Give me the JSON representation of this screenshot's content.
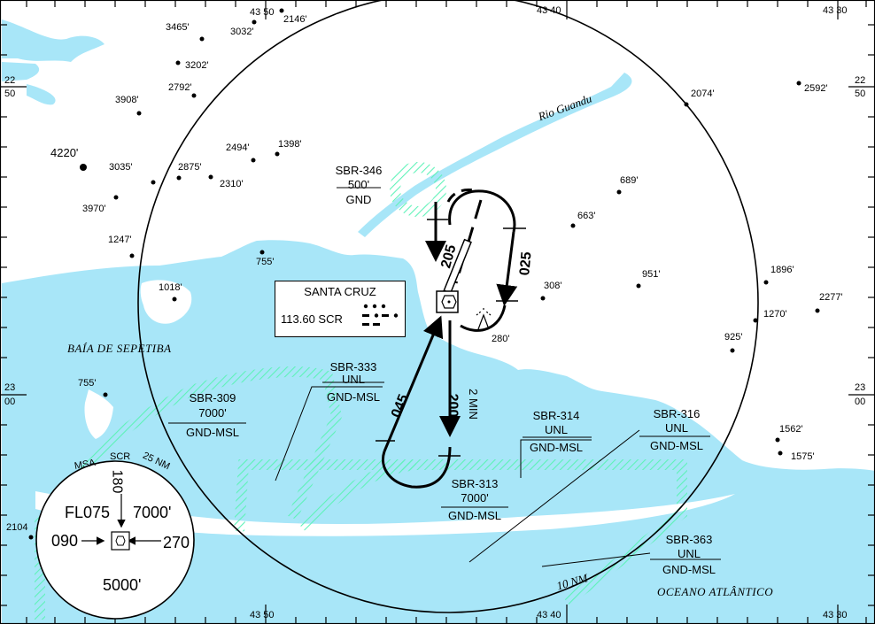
{
  "colors": {
    "water": "#a8e6f8",
    "restricted_hatch": "#5ef2b8",
    "line": "#000000",
    "paper": "#ffffff"
  },
  "grid": {
    "lon_top": [
      "43 50",
      "43 40",
      "43 30"
    ],
    "lon_bottom": [
      "43 50",
      "43 40",
      "43 30"
    ],
    "lat_left": [
      {
        "deg": "22",
        "min": "50"
      },
      {
        "deg": "23",
        "min": "00"
      }
    ],
    "lat_right": [
      {
        "deg": "22",
        "min": "50"
      },
      {
        "deg": "23",
        "min": "00"
      }
    ]
  },
  "navaid": {
    "name": "SANTA CRUZ",
    "freq_ident": "113.60 SCR",
    "icon": "vor-dme-icon",
    "morse_icon": "morse-code-icon"
  },
  "holding": {
    "inbound_course": "025",
    "outbound_course": "205",
    "lower_inbound": "045",
    "lower_outbound": "200",
    "leg_time": "2 MIN"
  },
  "airspaces": [
    {
      "id": "SBR-346",
      "upper": "500'",
      "lower": "GND"
    },
    {
      "id": "SBR-333",
      "upper": "UNL",
      "lower": "GND-MSL"
    },
    {
      "id": "SBR-309",
      "upper": "7000'",
      "lower": "GND-MSL"
    },
    {
      "id": "SBR-314",
      "upper": "UNL",
      "lower": "GND-MSL"
    },
    {
      "id": "SBR-316",
      "upper": "UNL",
      "lower": "GND-MSL"
    },
    {
      "id": "SBR-313",
      "upper": "7000'",
      "lower": "GND-MSL"
    },
    {
      "id": "SBR-363",
      "upper": "UNL",
      "lower": "GND-MSL"
    }
  ],
  "place_names": {
    "river": "Rio Guandu",
    "bay": "BAÍA DE SEPETIBA",
    "ocean": "OCEANO ATLÂNTICO",
    "range_ring": "10 NM"
  },
  "elevations": [
    "3465'",
    "3032'",
    "2146'",
    "3202'",
    "2792'",
    "3908'",
    "4220'",
    "1398'",
    "2494'",
    "3035'",
    "2875'",
    "2310'",
    "3970'",
    "1247'",
    "755'",
    "1018'",
    "2074'",
    "2592'",
    "689'",
    "663'",
    "308'",
    "951'",
    "1896'",
    "2277'",
    "1270'",
    "925'",
    "280'",
    "755'",
    "1562'",
    "1575'",
    "2104"
  ],
  "msa": {
    "title": "MSA",
    "ident": "SCR",
    "radius": "25 NM",
    "brg_north": "180",
    "brg_west": "090",
    "brg_east": "270",
    "sector_north_left": "FL075",
    "sector_north_right": "7000'",
    "sector_south": "5000'"
  }
}
